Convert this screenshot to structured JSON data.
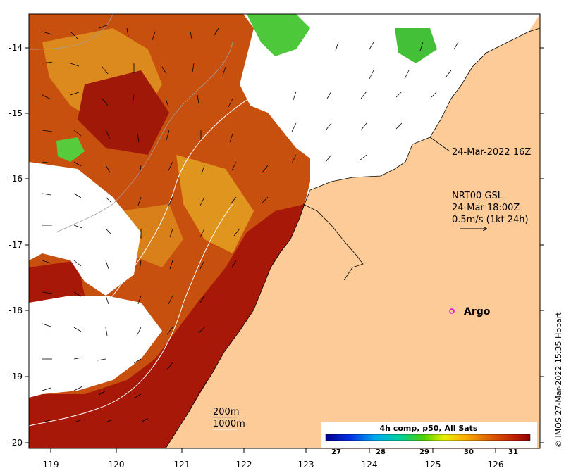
{
  "map": {
    "title_timestamp": "24-Mar-2022 16Z",
    "current_source": "NRT00 GSL",
    "current_time": "24-Mar 18:00Z",
    "current_scale": "0.5m/s (1kt 24h)",
    "argo_label": "Argo",
    "depth_labels": [
      "200m",
      "1000m"
    ],
    "credit": "© IMOS 27-Mar-2022 15:35 Hobart",
    "lon_ticks": [
      "119",
      "120",
      "121",
      "122",
      "123",
      "124",
      "125",
      "126"
    ],
    "lat_ticks": [
      "-14",
      "-15",
      "-16",
      "-17",
      "-18",
      "-19",
      "-20"
    ],
    "colorbar": {
      "title": "4h comp, p50, All Sats",
      "ticks": [
        "27",
        "28",
        "29",
        "30",
        "31"
      ]
    }
  },
  "colors": {
    "land": "#fccb98",
    "sst_hot": "#a81808",
    "sst_warm": "#cc5a10",
    "sst_mid": "#e08a18",
    "sst_cool": "#44c838",
    "argo": "#e000e0"
  }
}
